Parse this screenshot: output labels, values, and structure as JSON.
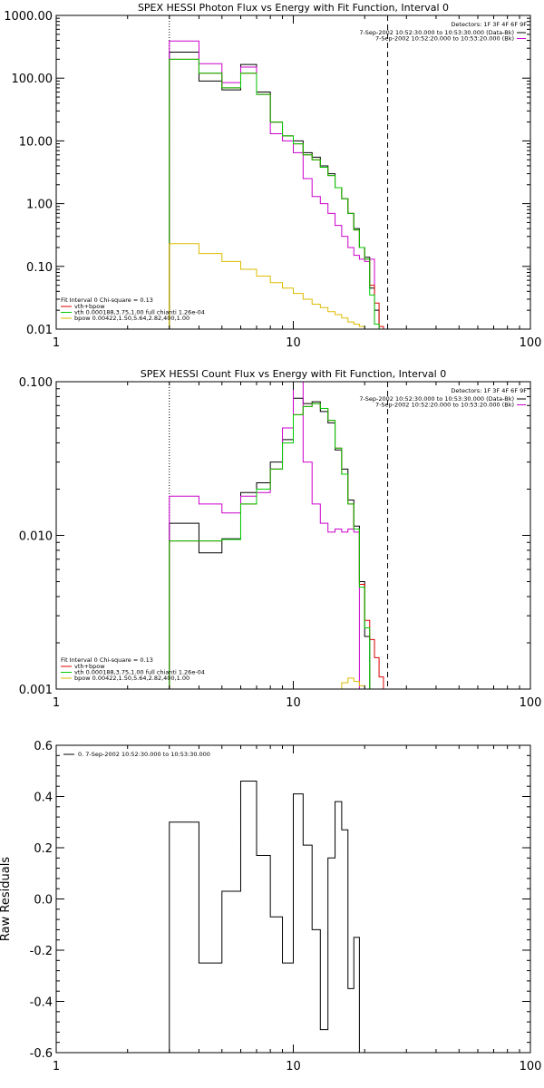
{
  "chart_data": [
    {
      "type": "line",
      "title": "SPEX HESSI Photon Flux vs Energy with Fit Function, Interval 0",
      "xlabel": "",
      "ylabel": "",
      "x_scale": "log",
      "y_scale": "log",
      "xlim": [
        1,
        100
      ],
      "ylim": [
        0.01,
        1000
      ],
      "x_ticks": [
        {
          "value": 1,
          "label": "1"
        },
        {
          "value": 10,
          "label": "10"
        },
        {
          "value": 100,
          "label": "100"
        }
      ],
      "y_ticks": [
        {
          "value": 0.01,
          "label": "0.01"
        },
        {
          "value": 0.1,
          "label": "0.10"
        },
        {
          "value": 1,
          "label": "1.00"
        },
        {
          "value": 10,
          "label": "10.00"
        },
        {
          "value": 100,
          "label": "100.00"
        },
        {
          "value": 1000,
          "label": "1000.00"
        }
      ],
      "annotations": {
        "detectors": "Detectors: 1F 3F 4F 6F 9F",
        "times": [
          {
            "text": "7-Sep-2002 10:52:30.000 to 10:53:30.000 (Data-Bk)",
            "color": "#000000"
          },
          {
            "text": "7-Sep-2002 10:52:20.000 to 10:53:20.000 (Bk)",
            "color": "#cc00cc"
          }
        ],
        "fit_header": "Fit Interval 0   Chi-square = 0.13",
        "fit_lines": [
          {
            "text": "vth+bpow",
            "color": "#dd0000"
          },
          {
            "text": "vth 0.000188,3.75,1.00  full chianti 1.26e-04",
            "color": "#00cc00"
          },
          {
            "text": "bpow 0.00422,1.50,5.64,2.82,400,1.00",
            "color": "#ddbb00"
          }
        ]
      },
      "vlines": [
        {
          "x": 3,
          "style": "dotted"
        },
        {
          "x": 25,
          "style": "dashed"
        }
      ],
      "edges": [
        3,
        4,
        5,
        6,
        7,
        8,
        9,
        10,
        11,
        12,
        13,
        14,
        15,
        16,
        17,
        18,
        19,
        20,
        21,
        22,
        23,
        24,
        25,
        26,
        27,
        28,
        29,
        30,
        31
      ],
      "series": [
        {
          "color": "#000000",
          "values": [
            260,
            90,
            65,
            165,
            60,
            20,
            12,
            10,
            6.5,
            5.5,
            4.0,
            3.0,
            1.8,
            1.2,
            0.7,
            0.4,
            0.2,
            0.14,
            0.045,
            0.02,
            null,
            null,
            null,
            null,
            null,
            null,
            null,
            null
          ]
        },
        {
          "color": "#cc00cc",
          "values": [
            390,
            170,
            85,
            150,
            55,
            13,
            10,
            6.5,
            2.5,
            1.3,
            1.0,
            0.7,
            0.45,
            0.3,
            0.2,
            0.15,
            0.13,
            0.12,
            0.13,
            0.012,
            null,
            null,
            null,
            null,
            null,
            null,
            null,
            null
          ]
        },
        {
          "color": "#dd0000",
          "values": [
            200,
            120,
            70,
            120,
            55,
            20,
            12,
            9,
            6,
            5,
            3.8,
            2.8,
            1.8,
            1.2,
            0.7,
            0.38,
            0.2,
            0.13,
            0.05,
            0.026,
            0.011,
            null,
            null,
            null,
            null,
            null,
            null,
            null
          ]
        },
        {
          "color": "#00cc00",
          "values": [
            200,
            120,
            70,
            120,
            55,
            20,
            12,
            9,
            6,
            5,
            3.8,
            2.8,
            1.8,
            1.2,
            0.7,
            0.38,
            0.2,
            0.13,
            0.035,
            0.012,
            null,
            null,
            null,
            null,
            null,
            null,
            null,
            null
          ]
        },
        {
          "color": "#ddbb00",
          "values": [
            0.23,
            0.16,
            0.12,
            0.09,
            0.07,
            0.055,
            0.045,
            0.037,
            0.03,
            0.025,
            0.022,
            0.019,
            0.017,
            0.015,
            0.013,
            0.012,
            0.011,
            0.01,
            null,
            null,
            null,
            null,
            null,
            null,
            null,
            null,
            null,
            null
          ]
        }
      ],
      "legend": "top-right"
    },
    {
      "type": "line",
      "title": "SPEX HESSI Count Flux vs Energy with Fit Function, Interval 0",
      "xlabel": "",
      "ylabel": "",
      "x_scale": "log",
      "y_scale": "log",
      "xlim": [
        1,
        100
      ],
      "ylim": [
        0.001,
        0.1
      ],
      "x_ticks": [
        {
          "value": 1,
          "label": "1"
        },
        {
          "value": 10,
          "label": "10"
        },
        {
          "value": 100,
          "label": "100"
        }
      ],
      "y_ticks": [
        {
          "value": 0.001,
          "label": "0.001"
        },
        {
          "value": 0.01,
          "label": "0.010"
        },
        {
          "value": 0.1,
          "label": "0.100"
        }
      ],
      "annotations": {
        "detectors": "Detectors: 1F 3F 4F 6F 9F",
        "times": [
          {
            "text": "7-Sep-2002 10:52:30.000 to 10:53:30.000 (Data-Bk)",
            "color": "#000000"
          },
          {
            "text": "7-Sep-2002 10:52:20.000 to 10:53:20.000 (Bk)",
            "color": "#cc00cc"
          }
        ],
        "fit_header": "Fit Interval 0   Chi-square = 0.13",
        "fit_lines": [
          {
            "text": "vth+bpow",
            "color": "#dd0000"
          },
          {
            "text": "vth 0.000188,3.75,1.00  full chianti 1.26e-04",
            "color": "#00cc00"
          },
          {
            "text": "bpow 0.00422,1.50,5.64,2.82,400,1.00",
            "color": "#ddbb00"
          }
        ]
      },
      "vlines": [
        {
          "x": 3,
          "style": "dotted"
        },
        {
          "x": 25,
          "style": "dashed"
        }
      ],
      "edges": [
        3,
        4,
        5,
        6,
        7,
        8,
        9,
        10,
        11,
        12,
        13,
        14,
        15,
        16,
        17,
        18,
        19,
        20,
        21,
        22,
        23,
        24,
        25,
        26,
        27,
        28,
        29,
        30,
        31,
        32,
        33,
        34,
        35
      ],
      "series": [
        {
          "color": "#000000",
          "values": [
            0.012,
            0.0077,
            0.0095,
            0.019,
            0.022,
            0.03,
            0.042,
            0.078,
            0.072,
            0.074,
            0.064,
            0.054,
            0.036,
            0.027,
            0.017,
            0.0115,
            0.005,
            0.0022,
            null,
            null,
            null,
            null,
            null,
            null,
            null,
            null,
            null,
            null,
            null,
            null,
            null,
            null
          ]
        },
        {
          "color": "#cc00cc",
          "values": [
            0.018,
            0.016,
            0.014,
            0.018,
            0.019,
            0.027,
            0.05,
            0.104,
            0.03,
            0.016,
            0.012,
            0.0105,
            0.011,
            0.0105,
            0.011,
            0.0105,
            0.001,
            null,
            null,
            null,
            null,
            null,
            null,
            null,
            null,
            null,
            null,
            null,
            null,
            null,
            null,
            null
          ]
        },
        {
          "color": "#dd0000",
          "values": [
            0.0092,
            0.0092,
            0.0094,
            0.016,
            0.02,
            0.027,
            0.04,
            0.061,
            0.069,
            0.072,
            0.067,
            0.056,
            0.037,
            0.025,
            0.016,
            0.011,
            0.0048,
            0.0028,
            0.0021,
            0.0016,
            0.0012,
            0.001,
            null,
            null,
            null,
            null,
            null,
            null,
            null,
            null,
            null,
            null
          ]
        },
        {
          "color": "#00cc00",
          "values": [
            0.0092,
            0.0092,
            0.0094,
            0.016,
            0.02,
            0.027,
            0.04,
            0.061,
            0.069,
            0.072,
            0.067,
            0.056,
            0.037,
            0.025,
            0.016,
            0.011,
            0.0046,
            0.0025,
            0.001,
            null,
            null,
            null,
            null,
            null,
            null,
            null,
            null,
            null,
            null,
            null,
            null,
            null
          ]
        },
        {
          "color": "#ddbb00",
          "values": [
            null,
            null,
            null,
            null,
            null,
            null,
            null,
            null,
            null,
            null,
            null,
            null,
            0.001,
            0.0011,
            0.00118,
            0.00112,
            0.00105,
            0.001,
            null,
            null,
            null,
            null,
            null,
            null,
            null,
            null,
            null,
            null,
            null,
            null,
            null,
            null
          ]
        }
      ],
      "legend": "top-right"
    },
    {
      "type": "line",
      "title": "",
      "xlabel": "",
      "ylabel": "Raw Residuals",
      "x_scale": "log",
      "y_scale": "linear",
      "xlim": [
        1,
        100
      ],
      "ylim": [
        -0.6,
        0.6
      ],
      "x_ticks": [
        {
          "value": 1,
          "label": "1"
        },
        {
          "value": 10,
          "label": "10"
        },
        {
          "value": 100,
          "label": "100"
        }
      ],
      "y_ticks": [
        {
          "value": -0.6,
          "label": "-0.6"
        },
        {
          "value": -0.4,
          "label": "-0.4"
        },
        {
          "value": -0.2,
          "label": "-0.2"
        },
        {
          "value": 0.0,
          "label": "0.0"
        },
        {
          "value": 0.2,
          "label": "0.2"
        },
        {
          "value": 0.4,
          "label": "0.4"
        },
        {
          "value": 0.6,
          "label": "0.6"
        }
      ],
      "annotations": {
        "legend_text": "0.  7-Sep-2002 10:52:30.000 to 10:53:30.000"
      },
      "edges": [
        3,
        4,
        5,
        6,
        7,
        8,
        9,
        10,
        11,
        12,
        13,
        14,
        15,
        16,
        17,
        18,
        19,
        20,
        21,
        22,
        23,
        24,
        25
      ],
      "series": [
        {
          "color": "#000000",
          "values": [
            0.3,
            -0.25,
            0.03,
            0.46,
            0.17,
            -0.07,
            -0.25,
            0.41,
            0.21,
            -0.12,
            -0.51,
            0.16,
            0.38,
            0.27,
            -0.35,
            -0.15
          ]
        }
      ],
      "legend": "top-left"
    }
  ]
}
